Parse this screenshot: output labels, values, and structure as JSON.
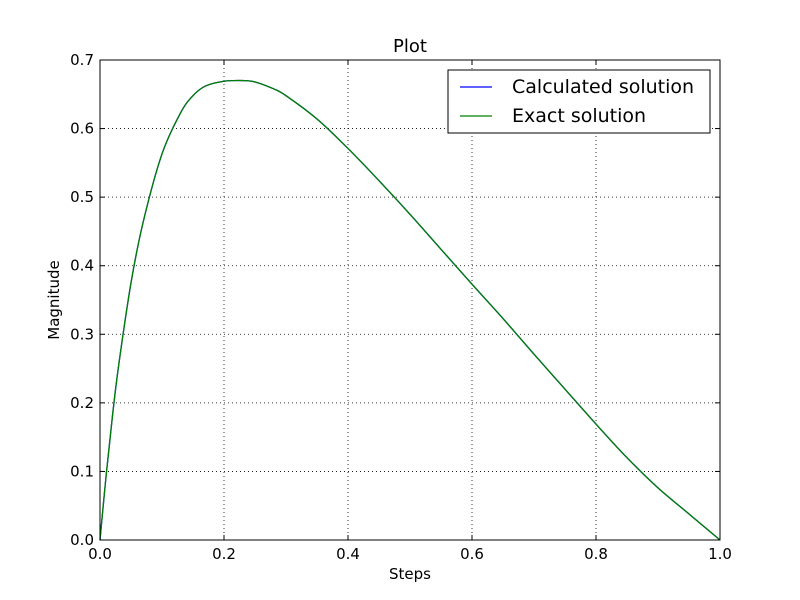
{
  "chart_data": {
    "type": "line",
    "title": "Plot",
    "xlabel": "Steps",
    "ylabel": "Magnitude",
    "xlim": [
      0.0,
      1.0
    ],
    "ylim": [
      0.0,
      0.7
    ],
    "xticks": [
      0.0,
      0.2,
      0.4,
      0.6,
      0.8,
      1.0
    ],
    "xtick_labels": [
      "0.0",
      "0.2",
      "0.4",
      "0.6",
      "0.8",
      "1.0"
    ],
    "yticks": [
      0.0,
      0.1,
      0.2,
      0.3,
      0.4,
      0.5,
      0.6,
      0.7
    ],
    "ytick_labels": [
      "0.0",
      "0.1",
      "0.2",
      "0.3",
      "0.4",
      "0.5",
      "0.6",
      "0.7"
    ],
    "grid": true,
    "legend_position": "upper right",
    "series": [
      {
        "name": "Calculated solution",
        "color": "#0000ff",
        "x": [
          0.0,
          0.01,
          0.02,
          0.03,
          0.05,
          0.07,
          0.1,
          0.13,
          0.15,
          0.17,
          0.2,
          0.23,
          0.25,
          0.28,
          0.3,
          0.35,
          0.4,
          0.45,
          0.5,
          0.55,
          0.6,
          0.65,
          0.7,
          0.75,
          0.8,
          0.85,
          0.9,
          0.95,
          1.0
        ],
        "y": [
          0.0,
          0.095,
          0.18,
          0.254,
          0.375,
          0.465,
          0.563,
          0.623,
          0.648,
          0.662,
          0.669,
          0.67,
          0.668,
          0.658,
          0.648,
          0.614,
          0.571,
          0.524,
          0.475,
          0.424,
          0.373,
          0.323,
          0.271,
          0.22,
          0.169,
          0.12,
          0.076,
          0.038,
          0.0
        ]
      },
      {
        "name": "Exact solution",
        "color": "#008000",
        "x": [
          0.0,
          0.01,
          0.02,
          0.03,
          0.05,
          0.07,
          0.1,
          0.13,
          0.15,
          0.17,
          0.2,
          0.23,
          0.25,
          0.28,
          0.3,
          0.35,
          0.4,
          0.45,
          0.5,
          0.55,
          0.6,
          0.65,
          0.7,
          0.75,
          0.8,
          0.85,
          0.9,
          0.95,
          1.0
        ],
        "y": [
          0.0,
          0.095,
          0.18,
          0.254,
          0.375,
          0.465,
          0.563,
          0.623,
          0.648,
          0.662,
          0.669,
          0.67,
          0.668,
          0.658,
          0.648,
          0.614,
          0.571,
          0.524,
          0.475,
          0.424,
          0.373,
          0.323,
          0.271,
          0.22,
          0.169,
          0.12,
          0.076,
          0.038,
          0.0
        ]
      }
    ]
  }
}
